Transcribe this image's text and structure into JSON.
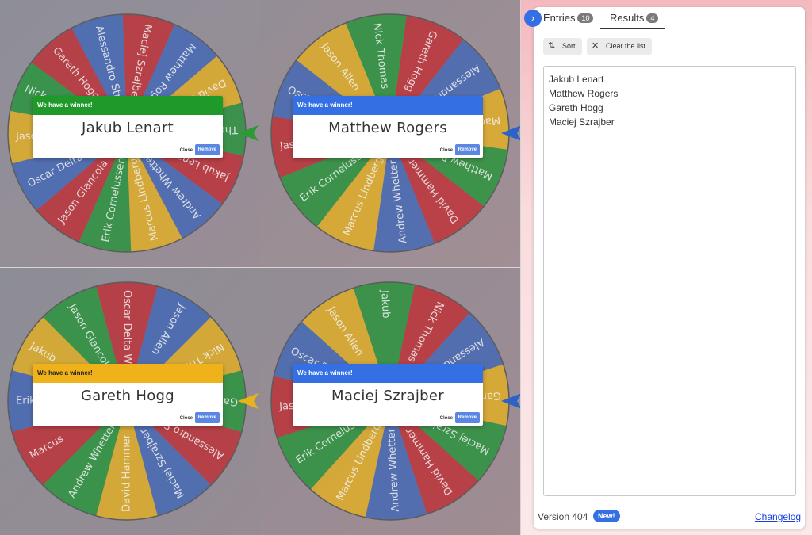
{
  "wheels": [
    {
      "winner_title": "We have a winner!",
      "winner_name": "Jakub Lenart",
      "header_color": "#1f9a2a",
      "pointer_color": "#2d9a35",
      "close_label": "Close",
      "remove_label": "Remove",
      "segment_labels": [
        "Maciej Szrajber",
        "Matthew Rogers",
        "David Hammer",
        "Thomas",
        "Jakub Lenart",
        "Andrew Whetter",
        "Marcus Lindberg",
        "Erik Cornelussen",
        "Jason Giancola",
        "Oscar Delta Wilko",
        "Jason Allen",
        "Nick",
        "Gareth Hogg",
        "Alessandro Strusa"
      ]
    },
    {
      "winner_title": "We have a winner!",
      "winner_name": "Matthew Rogers",
      "header_color": "#3470e4",
      "pointer_color": "#2b63c8",
      "close_label": "Close",
      "remove_label": "Remove",
      "segment_labels": [
        "Gareth Hogg",
        "Alessandro Strusa...",
        "Maciej Szrajber",
        "Matthew Rogers",
        "David Hammer",
        "Andrew Whetter",
        "Marcus Lindberg",
        "Erik Cornelussen",
        "Jason Giancola",
        "Oscar",
        "Jason Allen",
        "Nick Thomas"
      ]
    },
    {
      "winner_title": "We have a winner!",
      "winner_name": "Gareth Hogg",
      "header_color": "#f0b21a",
      "pointer_color": "#e8b21a",
      "close_label": "Close",
      "remove_label": "Remove",
      "segment_labels": [
        "Oscar Delta Wilko",
        "Jason Allen",
        "Nick Thomas",
        "Gareth Hogg",
        "Alessandro Strusa...",
        "Maciej Szrajber",
        "David Hammer",
        "Andrew Whetter",
        "Marcus",
        "Erik",
        "Jakub",
        "Jason Giancola"
      ]
    },
    {
      "winner_title": "We have a winner!",
      "winner_name": "Maciej Szrajber",
      "header_color": "#3470e4",
      "pointer_color": "#2b63c8",
      "close_label": "Close",
      "remove_label": "Remove",
      "segment_labels": [
        "Nick Thomas",
        "Alessandro Strusa...",
        "Gareth Hogg",
        "Maciej Szrajber",
        "David Hammer",
        "Andrew Whetter",
        "Marcus Lindberg",
        "Erik Cornelussen",
        "Jason Giancola",
        "Oscar Delta Wilko",
        "Jason Allen",
        "Jakub"
      ]
    }
  ],
  "panel": {
    "tabs": [
      {
        "label": "Entries",
        "count": "10"
      },
      {
        "label": "Results",
        "count": "4"
      }
    ],
    "sort_label": "Sort",
    "clear_label": "Clear the list",
    "results": [
      "Jakub Lenart",
      "Matthew Rogers",
      "Gareth Hogg",
      "Maciej Szrajber"
    ],
    "version_label": "Version 404",
    "new_badge": "New!",
    "changelog_label": "Changelog"
  },
  "segment_colors": [
    "#c1272d",
    "#3b64b8",
    "#e8b11a",
    "#1e9433"
  ],
  "icons": {
    "toggle": "chevron-right-icon",
    "sort": "sort-icon",
    "clear": "close-icon"
  }
}
